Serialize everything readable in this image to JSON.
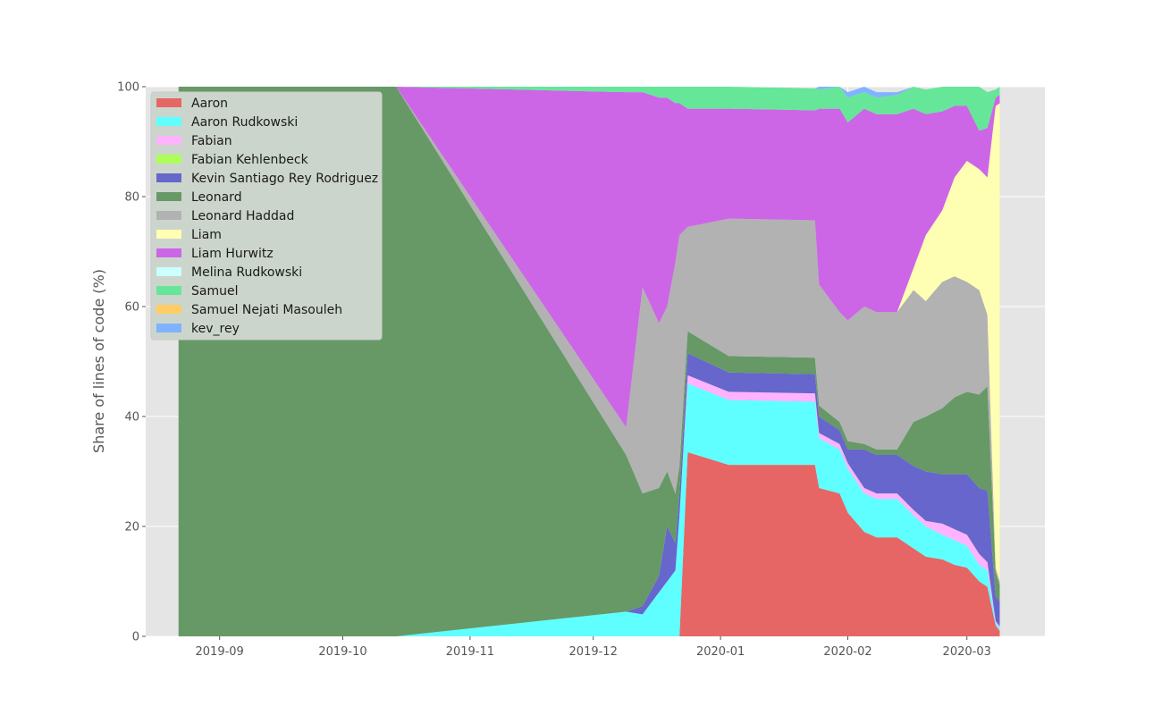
{
  "chart_data": {
    "type": "area",
    "stacked": true,
    "xlabel": "",
    "ylabel": "Share of lines of code (%)",
    "ylim": [
      0,
      100
    ],
    "yticks": [
      0,
      20,
      40,
      60,
      80,
      100
    ],
    "xlim": [
      "2019-08-14",
      "2020-03-20"
    ],
    "xtick_dates": [
      "2019-09-01",
      "2019-10-01",
      "2019-11-01",
      "2019-12-01",
      "2020-01-01",
      "2020-02-01",
      "2020-03-01"
    ],
    "xtick_labels": [
      "2019-09",
      "2019-10",
      "2019-11",
      "2019-12",
      "2020-01",
      "2020-02",
      "2020-03"
    ],
    "grid": true,
    "legend_position": "top-left",
    "dates": [
      "2019-08-22",
      "2019-10-14",
      "2019-12-09",
      "2019-12-13",
      "2019-12-17",
      "2019-12-19",
      "2019-12-21",
      "2019-12-22",
      "2019-12-24",
      "2020-01-03",
      "2020-01-24",
      "2020-01-25",
      "2020-01-30",
      "2020-02-01",
      "2020-02-05",
      "2020-02-08",
      "2020-02-13",
      "2020-02-17",
      "2020-02-20",
      "2020-02-24",
      "2020-02-27",
      "2020-03-01",
      "2020-03-04",
      "2020-03-06",
      "2020-03-08",
      "2020-03-09"
    ],
    "series": [
      {
        "name": "Aaron",
        "color": "#e66665",
        "values": [
          0,
          0,
          0,
          0,
          0,
          0,
          0,
          0,
          33.5,
          31.2,
          31.2,
          27,
          26,
          22.5,
          19,
          18,
          18,
          16,
          14.5,
          14,
          13,
          12.5,
          10,
          9,
          2,
          1
        ]
      },
      {
        "name": "Aaron Rudkowski",
        "color": "#5fffff",
        "values": [
          0,
          0,
          4.5,
          4,
          8,
          10,
          12,
          22,
          12.5,
          11.8,
          11.5,
          9,
          8,
          8,
          7,
          7,
          7,
          6,
          5.5,
          4.5,
          4.5,
          4,
          3,
          3,
          0.5,
          0.5
        ]
      },
      {
        "name": "Fabian",
        "color": "#ffb3ff",
        "values": [
          0,
          0,
          0,
          0,
          0,
          0,
          0,
          0,
          1.5,
          1.5,
          1.5,
          1,
          1,
          1,
          1,
          1,
          1,
          1,
          1,
          2,
          2,
          2,
          2,
          1.5,
          0.3,
          0.3
        ]
      },
      {
        "name": "Fabian Kehlenbeck",
        "color": "#acff59",
        "values": [
          0,
          0,
          0,
          0,
          0,
          0,
          0,
          0,
          0,
          0,
          0,
          0,
          0,
          0,
          0,
          0,
          0,
          0,
          0,
          0,
          0,
          0,
          0,
          0,
          0,
          0
        ]
      },
      {
        "name": "Kevin Santiago Rey Rodriguez",
        "color": "#6766cc",
        "values": [
          0,
          0,
          0,
          1.5,
          3,
          10,
          5,
          4,
          4,
          3.5,
          3.5,
          3,
          2.5,
          2.5,
          7,
          7,
          7,
          8,
          9,
          9,
          10,
          11,
          12,
          13,
          4.5,
          4.5
        ]
      },
      {
        "name": "Leonard",
        "color": "#669966",
        "values": [
          100,
          100,
          28.5,
          20.5,
          16,
          10,
          9,
          5,
          4,
          3,
          3,
          2,
          1.5,
          1.5,
          1,
          1,
          1,
          8,
          10,
          12,
          14,
          15,
          17,
          19,
          4.5,
          3
        ]
      },
      {
        "name": "Leonard Haddad",
        "color": "#b2b2b2",
        "values": [
          0,
          0,
          5,
          37.5,
          30,
          30,
          42,
          42,
          19,
          25,
          25,
          22,
          20,
          22,
          25,
          25,
          25,
          24,
          21,
          23,
          22,
          20,
          19,
          13,
          0.7,
          0.7
        ]
      },
      {
        "name": "Liam",
        "color": "#ffffb3",
        "values": [
          0,
          0,
          0,
          0,
          0,
          0,
          0,
          0,
          0,
          0,
          0,
          0,
          0,
          0,
          0,
          0,
          0,
          4,
          12,
          13,
          18,
          22,
          22,
          25,
          84,
          87
        ]
      },
      {
        "name": "Liam Hurwitz",
        "color": "#cc66e6",
        "values": [
          0,
          0,
          61,
          35.5,
          41,
          38,
          29,
          24,
          21.5,
          20,
          20,
          32,
          37,
          36,
          36,
          36,
          36,
          29,
          22,
          18,
          13,
          10,
          7,
          9,
          1.5,
          1.5
        ]
      },
      {
        "name": "Melina Rudkowski",
        "color": "#ccffff",
        "values": [
          0,
          0,
          0,
          0,
          0,
          0,
          0,
          0,
          0,
          0,
          0,
          0,
          0,
          0,
          0,
          0,
          0,
          0,
          0,
          0,
          0,
          0,
          0,
          0,
          0,
          0
        ]
      },
      {
        "name": "Samuel",
        "color": "#66e699",
        "values": [
          0,
          0,
          1,
          1,
          2,
          2,
          3,
          3,
          4,
          4,
          4,
          3.5,
          4,
          4.5,
          3,
          3,
          3.5,
          4,
          4.5,
          4.5,
          3.5,
          3.5,
          8,
          6.5,
          1.5,
          1.5
        ]
      },
      {
        "name": "Samuel Nejati Masouleh",
        "color": "#ffcc66",
        "values": [
          0,
          0,
          0,
          0,
          0,
          0,
          0,
          0,
          0,
          0,
          0,
          0,
          0,
          0,
          0,
          0,
          0,
          0,
          0,
          0,
          0,
          0,
          0,
          0,
          0,
          0
        ]
      },
      {
        "name": "kev_rey",
        "color": "#80b3ff",
        "values": [
          0,
          0,
          0,
          0,
          0,
          0,
          0,
          0,
          0,
          0,
          0,
          0.5,
          0,
          1,
          1,
          1,
          0.5,
          0,
          0,
          0,
          0,
          0,
          0,
          0,
          0,
          0
        ]
      }
    ]
  },
  "style": {
    "plot_background": "#e5e5e5",
    "grid_color": "#ffffff",
    "legend_background": "#ccd5cc",
    "legend_border": "#cccccc"
  }
}
